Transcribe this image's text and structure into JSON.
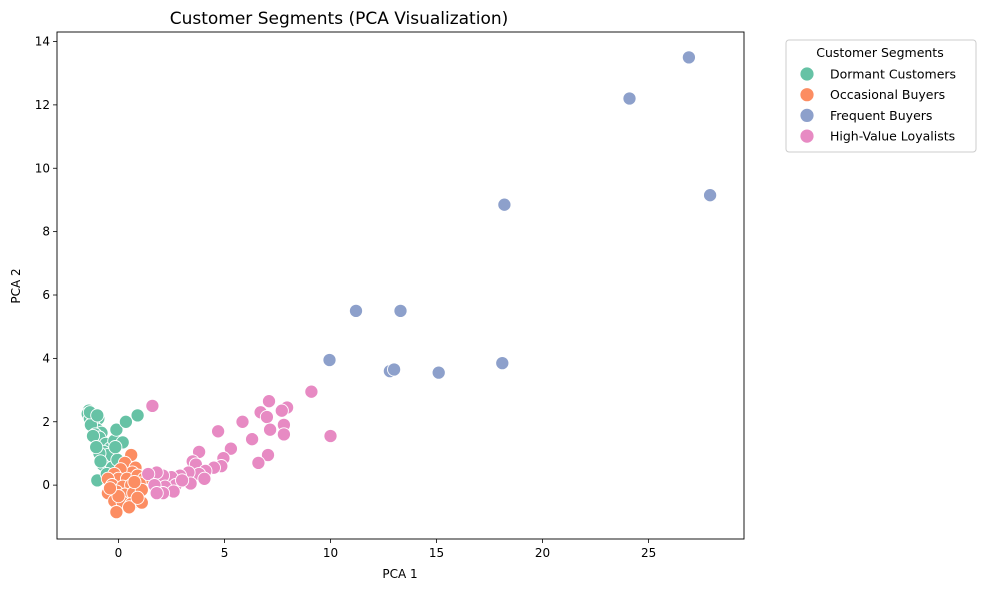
{
  "chart_data": {
    "type": "scatter",
    "title": "Customer Segments (PCA Visualization)",
    "xlabel": "PCA 1",
    "ylabel": "PCA 2",
    "xlim": [
      -2.9,
      29.5
    ],
    "ylim": [
      -1.7,
      14.3
    ],
    "xticks": [
      0,
      5,
      10,
      15,
      20,
      25
    ],
    "yticks": [
      0,
      2,
      4,
      6,
      8,
      10,
      12,
      14
    ],
    "grid": false,
    "legend": {
      "title": "Customer Segments",
      "placement": "outside-top-right"
    },
    "series": [
      {
        "name": "Dormant Customers",
        "color": "#66c2a5",
        "points": [
          [
            -1.4,
            2.35
          ],
          [
            -1.3,
            2.3
          ],
          [
            -1.45,
            2.25
          ],
          [
            -1.2,
            2.2
          ],
          [
            -1.35,
            2.1
          ],
          [
            -1.1,
            2.05
          ],
          [
            -1.25,
            1.95
          ],
          [
            -0.95,
            2.1
          ],
          [
            -1.15,
            1.85
          ],
          [
            -1.0,
            1.75
          ],
          [
            -1.3,
            1.9
          ],
          [
            -0.8,
            1.65
          ],
          [
            -1.1,
            1.6
          ],
          [
            -0.9,
            1.5
          ],
          [
            -1.2,
            1.55
          ],
          [
            -0.6,
            1.3
          ],
          [
            -0.4,
            1.15
          ],
          [
            -0.7,
            1.05
          ],
          [
            -0.5,
            0.95
          ],
          [
            -0.9,
            1.0
          ],
          [
            -0.2,
            1.4
          ],
          [
            -0.1,
            1.75
          ],
          [
            -0.75,
            0.65
          ],
          [
            -0.3,
            0.55
          ],
          [
            -0.05,
            0.8
          ],
          [
            0.2,
            1.35
          ],
          [
            0.35,
            2.0
          ],
          [
            0.9,
            2.2
          ],
          [
            -1.0,
            0.15
          ],
          [
            -0.55,
            0.35
          ],
          [
            -1.35,
            2.3
          ],
          [
            -1.05,
            1.2
          ],
          [
            -0.85,
            0.75
          ],
          [
            -0.15,
            1.2
          ],
          [
            -1.0,
            2.2
          ]
        ]
      },
      {
        "name": "Occasional Buyers",
        "color": "#fc8d62",
        "points": [
          [
            0.6,
            0.95
          ],
          [
            0.3,
            0.7
          ],
          [
            0.8,
            0.55
          ],
          [
            0.65,
            0.4
          ],
          [
            0.1,
            0.5
          ],
          [
            -0.2,
            0.35
          ],
          [
            0.0,
            0.2
          ],
          [
            0.4,
            0.2
          ],
          [
            0.9,
            0.3
          ],
          [
            1.2,
            0.2
          ],
          [
            -0.5,
            0.2
          ],
          [
            -0.3,
            0.0
          ],
          [
            0.2,
            -0.05
          ],
          [
            0.6,
            0.0
          ],
          [
            1.0,
            0.05
          ],
          [
            -0.5,
            -0.25
          ],
          [
            -0.1,
            -0.2
          ],
          [
            0.3,
            -0.3
          ],
          [
            0.7,
            -0.25
          ],
          [
            1.1,
            -0.15
          ],
          [
            -0.2,
            -0.5
          ],
          [
            0.2,
            -0.55
          ],
          [
            0.6,
            -0.6
          ],
          [
            1.1,
            -0.55
          ],
          [
            -0.1,
            -0.85
          ],
          [
            0.5,
            -0.7
          ],
          [
            0.0,
            -0.35
          ],
          [
            0.9,
            -0.4
          ],
          [
            -0.4,
            -0.1
          ],
          [
            0.75,
            0.1
          ]
        ]
      },
      {
        "name": "Frequent Buyers",
        "color": "#8da0cb",
        "points": [
          [
            26.9,
            13.5
          ],
          [
            24.1,
            12.2
          ],
          [
            27.9,
            9.15
          ],
          [
            18.2,
            8.85
          ],
          [
            11.2,
            5.5
          ],
          [
            13.3,
            5.5
          ],
          [
            9.95,
            3.95
          ],
          [
            12.8,
            3.6
          ],
          [
            13.0,
            3.65
          ],
          [
            15.1,
            3.55
          ],
          [
            18.1,
            3.85
          ]
        ]
      },
      {
        "name": "High-Value Loyalists",
        "color": "#e78ac3",
        "points": [
          [
            9.1,
            2.95
          ],
          [
            7.1,
            2.65
          ],
          [
            7.95,
            2.45
          ],
          [
            7.7,
            2.35
          ],
          [
            6.7,
            2.3
          ],
          [
            7.0,
            2.15
          ],
          [
            5.85,
            2.0
          ],
          [
            7.8,
            1.9
          ],
          [
            7.15,
            1.75
          ],
          [
            7.8,
            1.6
          ],
          [
            4.7,
            1.7
          ],
          [
            10.0,
            1.55
          ],
          [
            6.3,
            1.45
          ],
          [
            5.3,
            1.15
          ],
          [
            3.8,
            1.05
          ],
          [
            4.95,
            0.85
          ],
          [
            7.05,
            0.95
          ],
          [
            3.5,
            0.75
          ],
          [
            3.65,
            0.65
          ],
          [
            6.6,
            0.7
          ],
          [
            4.85,
            0.6
          ],
          [
            4.5,
            0.55
          ],
          [
            4.1,
            0.45
          ],
          [
            3.8,
            0.35
          ],
          [
            3.3,
            0.4
          ],
          [
            2.9,
            0.3
          ],
          [
            2.5,
            0.25
          ],
          [
            2.1,
            0.3
          ],
          [
            1.8,
            0.4
          ],
          [
            1.4,
            0.35
          ],
          [
            4.05,
            0.2
          ],
          [
            3.4,
            0.05
          ],
          [
            2.7,
            0.0
          ],
          [
            2.2,
            -0.05
          ],
          [
            1.7,
            0.0
          ],
          [
            2.6,
            -0.2
          ],
          [
            2.1,
            -0.25
          ],
          [
            1.8,
            -0.25
          ],
          [
            1.6,
            2.5
          ],
          [
            3.0,
            0.15
          ]
        ]
      }
    ]
  }
}
